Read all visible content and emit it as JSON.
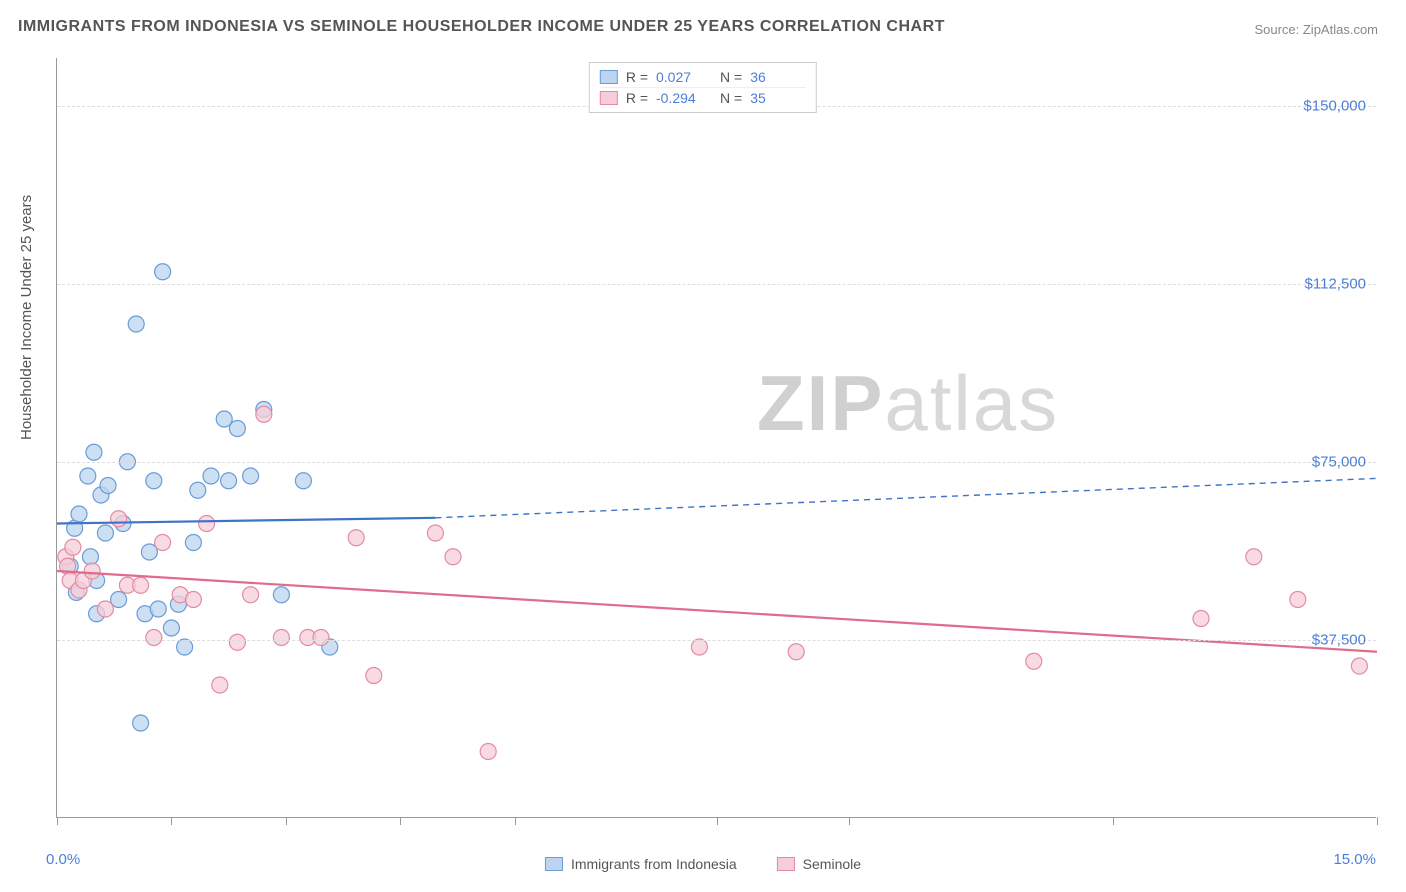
{
  "title": "IMMIGRANTS FROM INDONESIA VS SEMINOLE HOUSEHOLDER INCOME UNDER 25 YEARS CORRELATION CHART",
  "source": "Source: ZipAtlas.com",
  "ylabel": "Householder Income Under 25 years",
  "watermark_bold": "ZIP",
  "watermark_light": "atlas",
  "chart": {
    "type": "scatter",
    "xlim": [
      0,
      15
    ],
    "ylim": [
      0,
      160000
    ],
    "x_tick_positions": [
      0,
      1.3,
      2.6,
      3.9,
      5.2,
      7.5,
      9.0,
      12.0,
      15.0
    ],
    "x_axis_left_label": "0.0%",
    "x_axis_right_label": "15.0%",
    "y_ticks": [
      37500,
      75000,
      112500,
      150000
    ],
    "y_tick_labels": [
      "$37,500",
      "$75,000",
      "$112,500",
      "$150,000"
    ],
    "grid_color": "#dddddd",
    "axis_color": "#999999",
    "background_color": "#ffffff",
    "marker_radius": 8,
    "marker_stroke_width": 1.2,
    "line_width": 2.2,
    "series": [
      {
        "name": "Immigrants from Indonesia",
        "fill": "#bcd4ef",
        "stroke": "#6a9cd6",
        "line_color": "#3f73c4",
        "r_value": "0.027",
        "n_value": "36",
        "trend_solid": {
          "x1": 0.0,
          "y1": 62000,
          "x2": 4.3,
          "y2": 63200
        },
        "trend_dash": {
          "x1": 4.3,
          "y1": 63200,
          "x2": 15.0,
          "y2": 71500
        },
        "points": [
          [
            0.15,
            53000
          ],
          [
            0.2,
            61000
          ],
          [
            0.22,
            47500
          ],
          [
            0.25,
            64000
          ],
          [
            0.35,
            72000
          ],
          [
            0.38,
            55000
          ],
          [
            0.42,
            77000
          ],
          [
            0.45,
            50000
          ],
          [
            0.45,
            43000
          ],
          [
            0.5,
            68000
          ],
          [
            0.55,
            60000
          ],
          [
            0.58,
            70000
          ],
          [
            0.7,
            46000
          ],
          [
            0.75,
            62000
          ],
          [
            0.8,
            75000
          ],
          [
            0.95,
            20000
          ],
          [
            1.0,
            43000
          ],
          [
            1.05,
            56000
          ],
          [
            1.1,
            71000
          ],
          [
            1.15,
            44000
          ],
          [
            1.2,
            115000
          ],
          [
            1.3,
            40000
          ],
          [
            1.38,
            45000
          ],
          [
            1.45,
            36000
          ],
          [
            1.55,
            58000
          ],
          [
            1.6,
            69000
          ],
          [
            1.75,
            72000
          ],
          [
            1.9,
            84000
          ],
          [
            1.95,
            71000
          ],
          [
            2.05,
            82000
          ],
          [
            2.2,
            72000
          ],
          [
            2.35,
            86000
          ],
          [
            2.55,
            47000
          ],
          [
            2.8,
            71000
          ],
          [
            3.1,
            36000
          ],
          [
            0.9,
            104000
          ]
        ]
      },
      {
        "name": "Seminole",
        "fill": "#f6cdd8",
        "stroke": "#e48ba4",
        "line_color": "#e06b8b",
        "r_value": "-0.294",
        "n_value": "35",
        "trend_solid": {
          "x1": 0.0,
          "y1": 52000,
          "x2": 15.0,
          "y2": 35000
        },
        "trend_dash": null,
        "points": [
          [
            0.1,
            55000
          ],
          [
            0.12,
            53000
          ],
          [
            0.15,
            50000
          ],
          [
            0.18,
            57000
          ],
          [
            0.25,
            48000
          ],
          [
            0.3,
            50000
          ],
          [
            0.4,
            52000
          ],
          [
            0.55,
            44000
          ],
          [
            0.7,
            63000
          ],
          [
            0.8,
            49000
          ],
          [
            0.95,
            49000
          ],
          [
            1.1,
            38000
          ],
          [
            1.2,
            58000
          ],
          [
            1.4,
            47000
          ],
          [
            1.55,
            46000
          ],
          [
            1.7,
            62000
          ],
          [
            1.85,
            28000
          ],
          [
            2.05,
            37000
          ],
          [
            2.2,
            47000
          ],
          [
            2.35,
            85000
          ],
          [
            2.55,
            38000
          ],
          [
            2.85,
            38000
          ],
          [
            3.0,
            38000
          ],
          [
            3.4,
            59000
          ],
          [
            3.6,
            30000
          ],
          [
            4.3,
            60000
          ],
          [
            4.5,
            55000
          ],
          [
            4.9,
            14000
          ],
          [
            7.3,
            36000
          ],
          [
            8.4,
            35000
          ],
          [
            11.1,
            33000
          ],
          [
            13.0,
            42000
          ],
          [
            13.6,
            55000
          ],
          [
            14.1,
            46000
          ],
          [
            14.8,
            32000
          ]
        ]
      }
    ]
  },
  "stats_legend_labels": {
    "r": "R =",
    "n": "N ="
  },
  "bottom_legend": [
    {
      "label": "Immigrants from Indonesia",
      "fill": "#bcd4ef",
      "stroke": "#6a9cd6"
    },
    {
      "label": "Seminole",
      "fill": "#f6cdd8",
      "stroke": "#e48ba4"
    }
  ]
}
